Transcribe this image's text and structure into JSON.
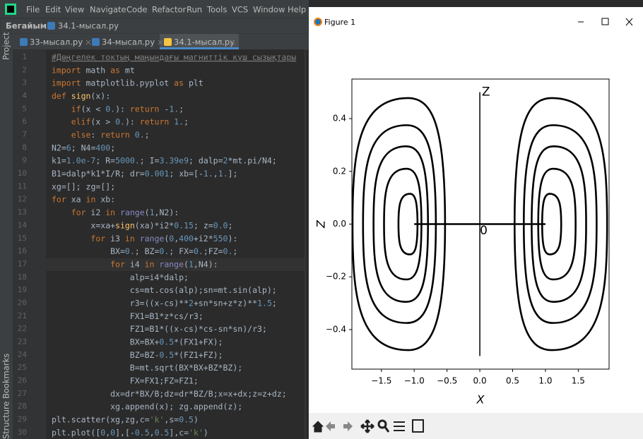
{
  "ide": {
    "menu": [
      "File",
      "Edit",
      "View",
      "Navigate",
      "Code",
      "Refactor",
      "Run",
      "Tools",
      "VCS",
      "Window",
      "Help"
    ],
    "breadcrumb": [
      "Бегайым",
      "34.1-мысал.ру"
    ],
    "tabs": [
      "33-мысал.ру",
      "34-мысал.ру",
      "34.1-мысал.ру"
    ],
    "side_tools": [
      "Project",
      "Bookmarks",
      "Structure"
    ],
    "line_numbers": [
      1,
      2,
      3,
      4,
      5,
      6,
      7,
      8,
      9,
      10,
      11,
      12,
      13,
      14,
      15,
      16,
      17,
      18,
      19,
      20,
      21,
      22,
      23,
      24,
      25,
      26,
      27,
      28,
      29,
      30
    ],
    "code": [
      "#Дөңгелек токтың маңындағы магниттік күш сызықтары",
      "import math as mt",
      "import matplotlib.pyplot as plt",
      "def sign(x):",
      "    if(x < 0.): return -1.;",
      "    elif(x > 0.): return 1.;",
      "    else: return 0.;",
      "N2=6; N4=400;",
      "k1=1.0e-7; R=5000.; I=3.39e9; dalp=2*mt.pi/N4;",
      "B1=dalp*k1*I/R; dr=0.001; xb=[-1.,1.];",
      "xg=[]; zg=[];",
      "for xa in xb:",
      "    for i2 in range(1,N2):",
      "        x=xa+sign(xa)*i2*0.15; z=0.0;",
      "        for i3 in range(0,400+i2*550):",
      "            BX=0.; BZ=0.; FX=0.;FZ=0.;",
      "            for i4 in range(1,N4):",
      "                alp=i4*dalp;",
      "                cs=mt.cos(alp);sn=mt.sin(alp);",
      "                r3=((x-cs)**2+sn*sn+z*z)**1.5;",
      "                FX1=B1*z*cs/r3;",
      "                FZ1=B1*((x-cs)*cs-sn*sn)/r3;",
      "                BX=BX+0.5*(FX1+FX);",
      "                BZ=BZ-0.5*(FZ1+FZ);",
      "                B=mt.sqrt(BX*BX+BZ*BZ);",
      "                FX=FX1;FZ=FZ1;",
      "            dx=dr*BX/B;dz=dr*BZ/B;x=x+dx;z=z+dz;",
      "            xg.append(x); zg.append(z);",
      "plt.scatter(xg,zg,c='k',s=0.5)",
      "plt.plot([0,0],[-0.5,0.5],c='k')"
    ]
  },
  "figure_window": {
    "title": "Figure 1"
  },
  "chart_data": {
    "type": "scatter",
    "xlabel": "X",
    "ylabel": "Z",
    "xlim": [
      -1.95,
      1.97
    ],
    "ylim": [
      -0.55,
      0.55
    ],
    "xticks": [
      {
        "value": -1.5,
        "label": "−1.5"
      },
      {
        "value": -1.0,
        "label": "−1.0"
      },
      {
        "value": -0.5,
        "label": "−0.5"
      },
      {
        "value": 0,
        "label": "0.0"
      },
      {
        "value": 0.5,
        "label": "0.5"
      },
      {
        "value": 1.0,
        "label": "1.0"
      },
      {
        "value": 1.5,
        "label": "1.5"
      }
    ],
    "yticks": [
      {
        "value": -0.4,
        "label": "−0.4"
      },
      {
        "value": -0.2,
        "label": "−0.2"
      },
      {
        "value": 0,
        "label": "0.0"
      },
      {
        "value": 0.2,
        "label": "0.2"
      },
      {
        "value": 0.4,
        "label": "0.4"
      }
    ],
    "color": "#000000",
    "loops": [
      {
        "x_min": 0.95,
        "x_max": 1.24,
        "z_max": 0.115
      },
      {
        "x_min": 0.89,
        "x_max": 1.46,
        "z_max": 0.21
      },
      {
        "x_min": 0.79,
        "x_max": 1.62,
        "z_max": 0.295
      },
      {
        "x_min": 0.67,
        "x_max": 1.78,
        "z_max": 0.375
      },
      {
        "x_min": 0.53,
        "x_max": 1.94,
        "z_max": 0.478
      },
      {
        "x_min": -1.24,
        "x_max": -0.95,
        "z_max": 0.115
      },
      {
        "x_min": -1.46,
        "x_max": -0.89,
        "z_max": 0.21
      },
      {
        "x_min": -1.62,
        "x_max": -0.79,
        "z_max": 0.295
      },
      {
        "x_min": -1.78,
        "x_max": -0.67,
        "z_max": 0.375
      },
      {
        "x_min": -1.94,
        "x_max": -0.53,
        "z_max": 0.478
      }
    ],
    "lines": [
      {
        "x": [
          0,
          0
        ],
        "y": [
          -0.5,
          0.5
        ]
      },
      {
        "x": [
          -1,
          1
        ],
        "y": [
          0,
          0
        ]
      }
    ],
    "annotations": [
      {
        "text": "Z",
        "x": 0.03,
        "y": 0.5
      },
      {
        "text": "0",
        "x": 0.0,
        "y": -0.025
      }
    ]
  }
}
